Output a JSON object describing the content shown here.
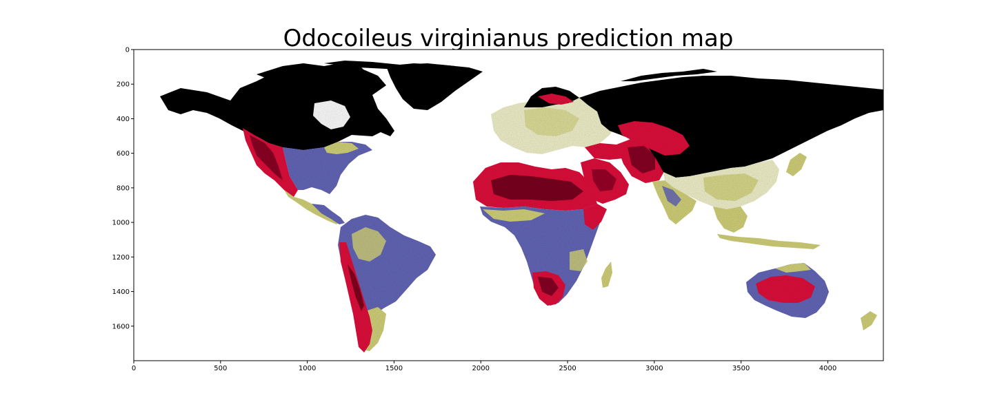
{
  "title": "Odocoileus virginianus prediction map",
  "colors": {
    "background": "#ffffff",
    "axes": "#000000",
    "ocean": "#ffffff",
    "very_low": "#000000",
    "low": "#e0163c",
    "low_dark": "#6a0a1e",
    "medium": "#6567b8",
    "high": "#d2d27a",
    "high_light": "#f2f2cc"
  },
  "chart_data": {
    "type": "heatmap",
    "title": "Odocoileus virginianus prediction map",
    "xlabel": "",
    "ylabel": "",
    "xlim": [
      0,
      4320
    ],
    "ylim": [
      1800,
      0
    ],
    "y_inverted": true,
    "grid": false,
    "x_ticks": [
      0,
      500,
      1000,
      1500,
      2000,
      2500,
      3000,
      3500,
      4000
    ],
    "y_ticks": [
      0,
      200,
      400,
      600,
      800,
      1000,
      1200,
      1400,
      1600
    ],
    "colormap": [
      "#000000",
      "#e0163c",
      "#6567b8",
      "#d2d27a",
      "#f2f2cc"
    ],
    "regions": [
      {
        "region": "north-america-boreal",
        "value": "very-low",
        "x": [
          170,
          1530
        ],
        "y": [
          230,
          560
        ]
      },
      {
        "region": "western-usa",
        "value": "low",
        "x": [
          690,
          980
        ],
        "y": [
          440,
          840
        ]
      },
      {
        "region": "eastern-usa",
        "value": "medium",
        "x": [
          960,
          1450
        ],
        "y": [
          480,
          830
        ]
      },
      {
        "region": "central-america",
        "value": "high",
        "x": [
          1020,
          1380
        ],
        "y": [
          780,
          960
        ]
      },
      {
        "region": "amazon",
        "value": "medium",
        "x": [
          1200,
          1740
        ],
        "y": [
          960,
          1360
        ]
      },
      {
        "region": "andes",
        "value": "low",
        "x": [
          1170,
          1380
        ],
        "y": [
          1050,
          1720
        ]
      },
      {
        "region": "europe",
        "value": "high",
        "x": [
          2040,
          2750
        ],
        "y": [
          330,
          640
        ]
      },
      {
        "region": "sahara",
        "value": "low",
        "x": [
          1970,
          2720
        ],
        "y": [
          660,
          920
        ]
      },
      {
        "region": "arabia",
        "value": "low",
        "x": [
          2560,
          2880
        ],
        "y": [
          650,
          960
        ]
      },
      {
        "region": "central-africa",
        "value": "medium",
        "x": [
          2040,
          2750
        ],
        "y": [
          930,
          1380
        ]
      },
      {
        "region": "southern-africa",
        "value": "low",
        "x": [
          2300,
          2520
        ],
        "y": [
          1260,
          1480
        ]
      },
      {
        "region": "russia-siberia",
        "value": "very-low",
        "x": [
          2660,
          4320
        ],
        "y": [
          120,
          680
        ]
      },
      {
        "region": "south-asia",
        "value": "high",
        "x": [
          3020,
          3470
        ],
        "y": [
          660,
          1010
        ]
      },
      {
        "region": "southeast-asia",
        "value": "high",
        "x": [
          3390,
          3950
        ],
        "y": [
          820,
          1140
        ]
      },
      {
        "region": "australia",
        "value": "medium",
        "x": [
          3540,
          4080
        ],
        "y": [
          1220,
          1570
        ]
      },
      {
        "region": "central-australia",
        "value": "low",
        "x": [
          3600,
          3940
        ],
        "y": [
          1300,
          1480
        ]
      }
    ]
  }
}
